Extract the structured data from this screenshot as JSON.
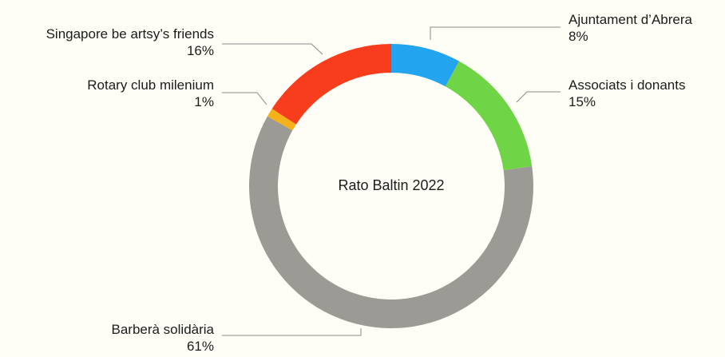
{
  "chart_data": {
    "type": "pie",
    "style": "donut",
    "title": "Rato Baltin 2022",
    "slices": [
      {
        "label": "Ajuntament d’Abrera",
        "value": 8,
        "value_label": "8%",
        "color": "#23a4ee"
      },
      {
        "label": "Associats i donants",
        "value": 15,
        "value_label": "15%",
        "color": "#6fd446"
      },
      {
        "label": "Barberà solidària",
        "value": 61,
        "value_label": "61%",
        "color": "#9b9a95"
      },
      {
        "label": "Rotary club milenium",
        "value": 1,
        "value_label": "1%",
        "color": "#f5b119"
      },
      {
        "label": "Singapore be artsy’s friends",
        "value": 16,
        "value_label": "16%",
        "color": "#f73d1b"
      }
    ],
    "legend": "none"
  }
}
